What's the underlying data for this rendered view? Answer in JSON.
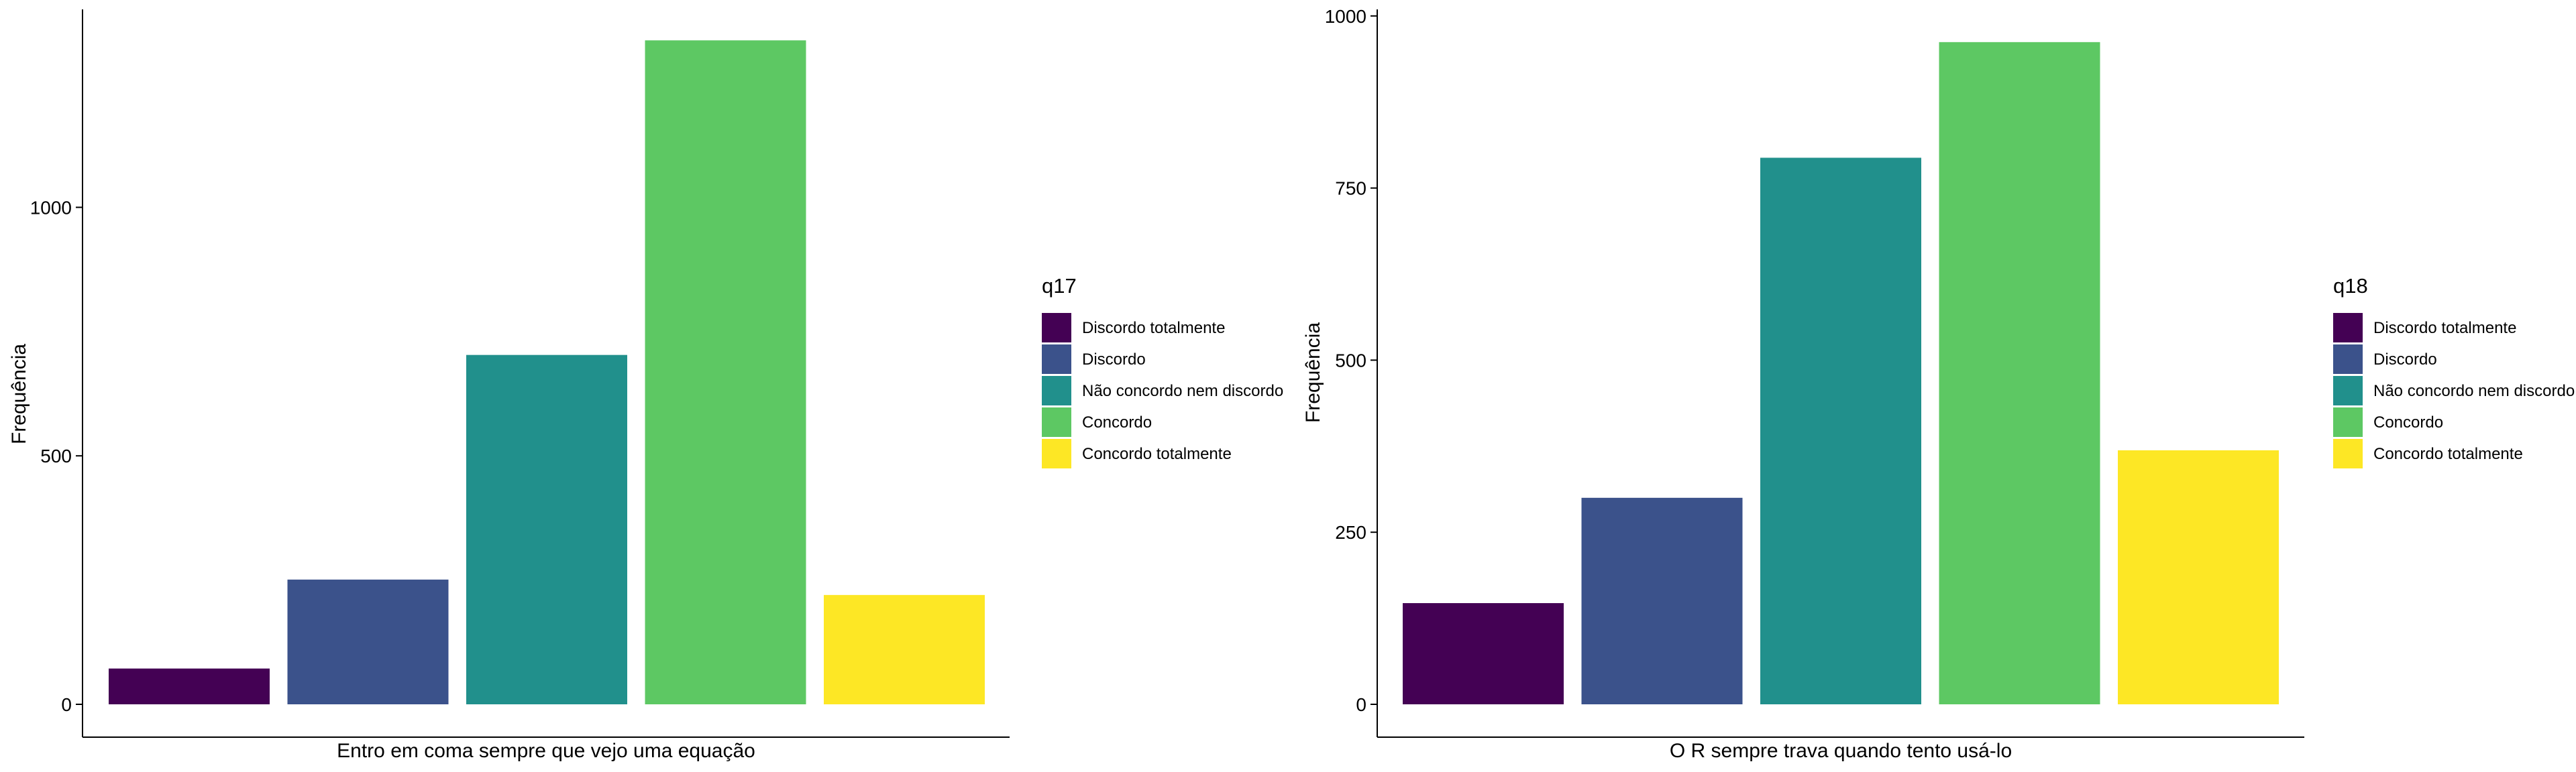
{
  "chart_data": [
    {
      "type": "bar",
      "title": "",
      "xlabel": "Entro em coma sempre que vejo uma equação",
      "ylabel": "Frequência",
      "categories": [
        "Discordo totalmente",
        "Discordo",
        "Não concordo nem discordo",
        "Concordo",
        "Concordo totalmente"
      ],
      "values": [
        72,
        251,
        703,
        1336,
        220
      ],
      "colors": [
        "#440154",
        "#3B528B",
        "#21908C",
        "#5DC863",
        "#FDE725"
      ],
      "yticks": [
        0,
        500,
        1000
      ],
      "ylim": [
        0,
        1400
      ],
      "grid": false,
      "legend": {
        "title": "q17",
        "position": "right"
      }
    },
    {
      "type": "bar",
      "title": "",
      "xlabel": "O R sempre trava quando tento usá-lo",
      "ylabel": "Frequência",
      "categories": [
        "Discordo totalmente",
        "Discordo",
        "Não concordo nem discordo",
        "Concordo",
        "Concordo totalmente"
      ],
      "values": [
        147,
        300,
        794,
        962,
        369
      ],
      "colors": [
        "#440154",
        "#3B528B",
        "#21908C",
        "#5DC863",
        "#FDE725"
      ],
      "yticks": [
        0,
        250,
        500,
        750,
        1000
      ],
      "ylim": [
        0,
        1000
      ],
      "grid": false,
      "legend": {
        "title": "q18",
        "position": "right"
      }
    }
  ]
}
